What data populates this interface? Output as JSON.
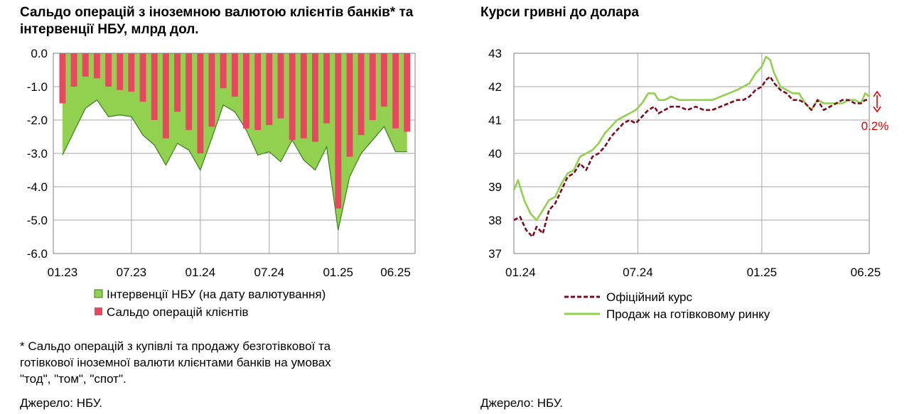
{
  "left_chart": {
    "title": "Сальдо операцій з іноземною валютою клієнтів банків* та інтервенції НБУ, млрд дол.",
    "footnote_lines": [
      "* Сальдо операцій з купівлі та продажу безготівкової та",
      "готівкової іноземної валюти клієнтами банків на умовах",
      "\"тод\", \"том\", \"спот\"."
    ],
    "source": "Джерело: НБУ."
  },
  "right_chart": {
    "title": "Курси гривні до долара",
    "source": "Джерело: НБУ.",
    "annotation": "0.2%"
  },
  "colors": {
    "interventions": "#92d050",
    "interventions_border": "#3a7d1e",
    "client_balance": "#e8485f",
    "official": "#7b0c20",
    "cash": "#92d050",
    "annotation": "#e00000"
  },
  "chart_data": [
    {
      "type": "area",
      "subtype": "bar+area",
      "title": "Сальдо операцій з іноземною валютою клієнтів банків* та інтервенції НБУ, млрд дол.",
      "xlabel": "",
      "ylabel": "",
      "ylim": [
        -6,
        0
      ],
      "yticks": [
        "0.0",
        "-1.0",
        "-2.0",
        "-3.0",
        "-4.0",
        "-5.0",
        "-6.0"
      ],
      "xtick_labels": [
        "01.23",
        "07.23",
        "01.24",
        "07.24",
        "01.25",
        "06.25"
      ],
      "xtick_period_index": [
        0,
        6,
        12,
        18,
        24,
        29
      ],
      "grid": true,
      "legend_position": "bottom",
      "series": [
        {
          "name": "Інтервенції НБУ (на дату валютування)",
          "kind": "area",
          "values": [
            -3.05,
            -2.35,
            -1.65,
            -1.4,
            -1.9,
            -1.85,
            -1.9,
            -2.45,
            -2.75,
            -3.35,
            -2.7,
            -2.9,
            -3.5,
            -2.55,
            -1.55,
            -1.75,
            -2.3,
            -3.05,
            -2.95,
            -3.25,
            -2.6,
            -3.2,
            -3.5,
            -2.8,
            -5.3,
            -3.7,
            -3.0,
            -2.6,
            -2.2,
            -2.95,
            -2.95
          ]
        },
        {
          "name": "Сальдо операцій клієнтів",
          "kind": "bar",
          "values": [
            -1.5,
            -1.0,
            -0.7,
            -0.75,
            -1.0,
            -1.1,
            -1.15,
            -1.45,
            -2.0,
            -2.55,
            -1.75,
            -2.3,
            -3.0,
            -2.2,
            -1.05,
            -1.3,
            -2.25,
            -2.3,
            -2.15,
            -1.95,
            -2.6,
            -2.55,
            -2.65,
            -2.1,
            -4.65,
            -3.1,
            -2.45,
            -2.0,
            -1.6,
            -2.25,
            -2.35
          ]
        }
      ]
    },
    {
      "type": "line",
      "title": "Курси гривні до долара",
      "xlabel": "",
      "ylabel": "",
      "ylim": [
        37,
        43
      ],
      "yticks": [
        37,
        38,
        39,
        40,
        41,
        42,
        43
      ],
      "xtick_labels": [
        "01.24",
        "07.24",
        "01.25",
        "06.25"
      ],
      "xtick_month_index": [
        0,
        6,
        12,
        17
      ],
      "grid": true,
      "legend_position": "bottom",
      "annotation": "0.2%",
      "series": [
        {
          "name": "Офіційний курс",
          "style": "dashed",
          "x_month": [
            0,
            0.3,
            0.6,
            0.9,
            1.1,
            1.4,
            1.7,
            2.0,
            2.3,
            2.6,
            2.9,
            3.2,
            3.5,
            3.8,
            4.1,
            4.4,
            4.7,
            5.0,
            5.3,
            5.6,
            5.9,
            6.2,
            6.5,
            6.8,
            7.0,
            7.3,
            7.6,
            8.0,
            8.4,
            8.8,
            9.2,
            9.6,
            10.0,
            10.4,
            10.8,
            11.1,
            11.4,
            11.7,
            12.0,
            12.2,
            12.4,
            12.6,
            12.9,
            13.2,
            13.5,
            13.8,
            14.1,
            14.4,
            14.7,
            15.0,
            15.3,
            15.6,
            15.9,
            16.2,
            16.5,
            16.8,
            17.0,
            17.2
          ],
          "values": [
            38.0,
            38.1,
            37.7,
            37.5,
            37.8,
            37.6,
            38.3,
            38.5,
            38.9,
            39.3,
            39.4,
            39.7,
            39.5,
            39.9,
            40.0,
            40.2,
            40.5,
            40.7,
            40.9,
            41.0,
            40.9,
            41.1,
            41.3,
            41.4,
            41.2,
            41.3,
            41.4,
            41.4,
            41.3,
            41.4,
            41.3,
            41.3,
            41.4,
            41.5,
            41.6,
            41.6,
            41.7,
            41.9,
            42.0,
            42.2,
            42.3,
            42.1,
            41.9,
            41.8,
            41.6,
            41.6,
            41.5,
            41.3,
            41.6,
            41.3,
            41.4,
            41.5,
            41.6,
            41.6,
            41.5,
            41.5,
            41.6,
            41.6
          ]
        },
        {
          "name": "Продаж на готівковому ринку",
          "style": "solid",
          "x_month": [
            0,
            0.2,
            0.5,
            0.8,
            1.1,
            1.4,
            1.7,
            2.0,
            2.3,
            2.6,
            2.9,
            3.2,
            3.5,
            3.8,
            4.1,
            4.4,
            4.7,
            5.0,
            5.3,
            5.6,
            5.9,
            6.2,
            6.5,
            6.8,
            7.0,
            7.3,
            7.6,
            8.0,
            8.4,
            8.8,
            9.2,
            9.6,
            10.0,
            10.4,
            10.8,
            11.1,
            11.4,
            11.7,
            12.0,
            12.2,
            12.4,
            12.6,
            12.9,
            13.2,
            13.5,
            13.8,
            14.1,
            14.4,
            14.7,
            15.0,
            15.3,
            15.6,
            15.9,
            16.2,
            16.5,
            16.8,
            17.0,
            17.2
          ],
          "values": [
            38.9,
            39.2,
            38.6,
            38.2,
            38.0,
            38.3,
            38.6,
            38.7,
            39.1,
            39.4,
            39.5,
            39.9,
            40.0,
            40.1,
            40.3,
            40.6,
            40.8,
            41.0,
            41.1,
            41.2,
            41.3,
            41.5,
            41.8,
            41.8,
            41.6,
            41.6,
            41.7,
            41.6,
            41.6,
            41.6,
            41.6,
            41.6,
            41.7,
            41.8,
            41.9,
            42.0,
            42.1,
            42.4,
            42.6,
            42.9,
            42.8,
            42.4,
            42.0,
            41.9,
            41.8,
            41.8,
            41.5,
            41.3,
            41.6,
            41.5,
            41.5,
            41.5,
            41.5,
            41.6,
            41.6,
            41.5,
            41.8,
            41.7
          ]
        }
      ]
    }
  ]
}
